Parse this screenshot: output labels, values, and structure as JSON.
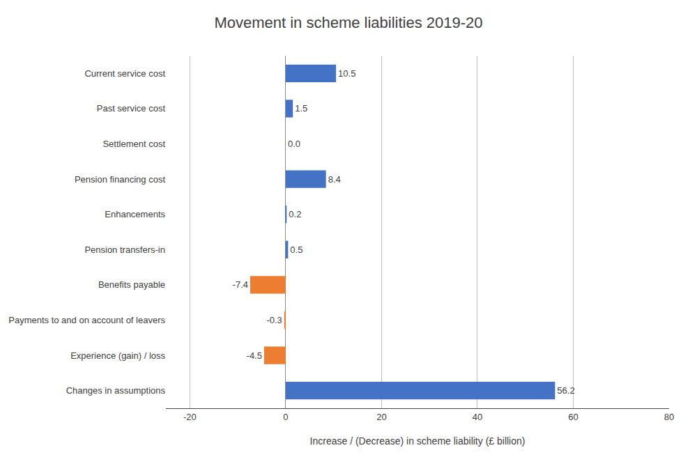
{
  "chart_data": {
    "type": "bar",
    "orientation": "horizontal",
    "title": "Movement in scheme liabilities 2019-20",
    "xlabel": "Increase / (Decrease) in scheme liability (£ billion)",
    "categories": [
      "Changes in assumptions",
      "Experience (gain) / loss",
      "Payments to and on account of leavers",
      "Benefits payable",
      "Pension transfers-in",
      "Enhancements",
      "Pension financing cost",
      "Settlement cost",
      "Past service cost",
      "Current service cost"
    ],
    "values": [
      56.2,
      -4.5,
      -0.3,
      -7.4,
      0.5,
      0.2,
      8.4,
      0.0,
      1.5,
      10.5
    ],
    "value_labels": [
      "56.2",
      "-4.5",
      "-0.3",
      "-7.4",
      "0.5",
      "0.2",
      "8.4",
      "0.0",
      "1.5",
      "10.5"
    ],
    "colors": [
      "#4472C4",
      "#ED7D31",
      "#ED7D31",
      "#ED7D31",
      "#4472C4",
      "#4472C4",
      "#4472C4",
      "#4472C4",
      "#4472C4",
      "#4472C4"
    ],
    "xlim": [
      -25,
      80
    ],
    "xticks": [
      -20,
      0,
      20,
      40,
      60,
      80
    ],
    "grid": true,
    "data_labels": true
  }
}
